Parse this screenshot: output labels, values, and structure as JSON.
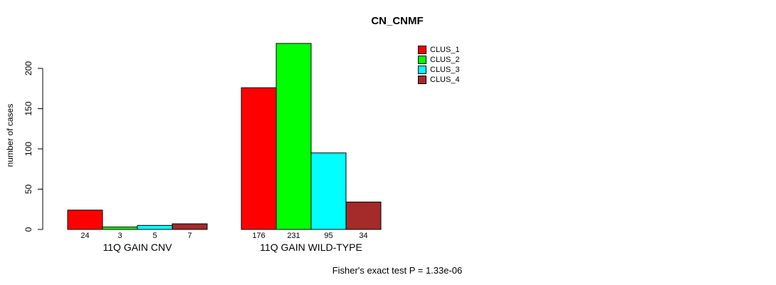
{
  "chart_data": {
    "type": "bar",
    "title": "CN_CNMF",
    "ylabel": "number of cases",
    "xlabel": "",
    "categories": [
      "11Q GAIN CNV",
      "11Q GAIN WILD-TYPE"
    ],
    "series": [
      {
        "name": "CLUS_1",
        "color": "#ff0000",
        "values": [
          24,
          176
        ]
      },
      {
        "name": "CLUS_2",
        "color": "#00ff00",
        "values": [
          3,
          231
        ]
      },
      {
        "name": "CLUS_3",
        "color": "#00ffff",
        "values": [
          5,
          95
        ]
      },
      {
        "name": "CLUS_4",
        "color": "#a52a2a",
        "values": [
          7,
          34
        ]
      }
    ],
    "yticks": [
      0,
      50,
      100,
      150,
      200
    ],
    "ylim": [
      0,
      235
    ],
    "grid": false,
    "legend_position": "top-right",
    "bar_value_labels_shown": true,
    "annotation": "Fisher's exact test P = 1.33e-06"
  },
  "legend": {
    "items": [
      {
        "label": "CLUS_1",
        "color": "#ff0000"
      },
      {
        "label": "CLUS_2",
        "color": "#00ff00"
      },
      {
        "label": "CLUS_3",
        "color": "#00ffff"
      },
      {
        "label": "CLUS_4",
        "color": "#a52a2a"
      }
    ]
  },
  "colors": {
    "axis": "#000000",
    "text": "#000000",
    "background": "#ffffff"
  }
}
